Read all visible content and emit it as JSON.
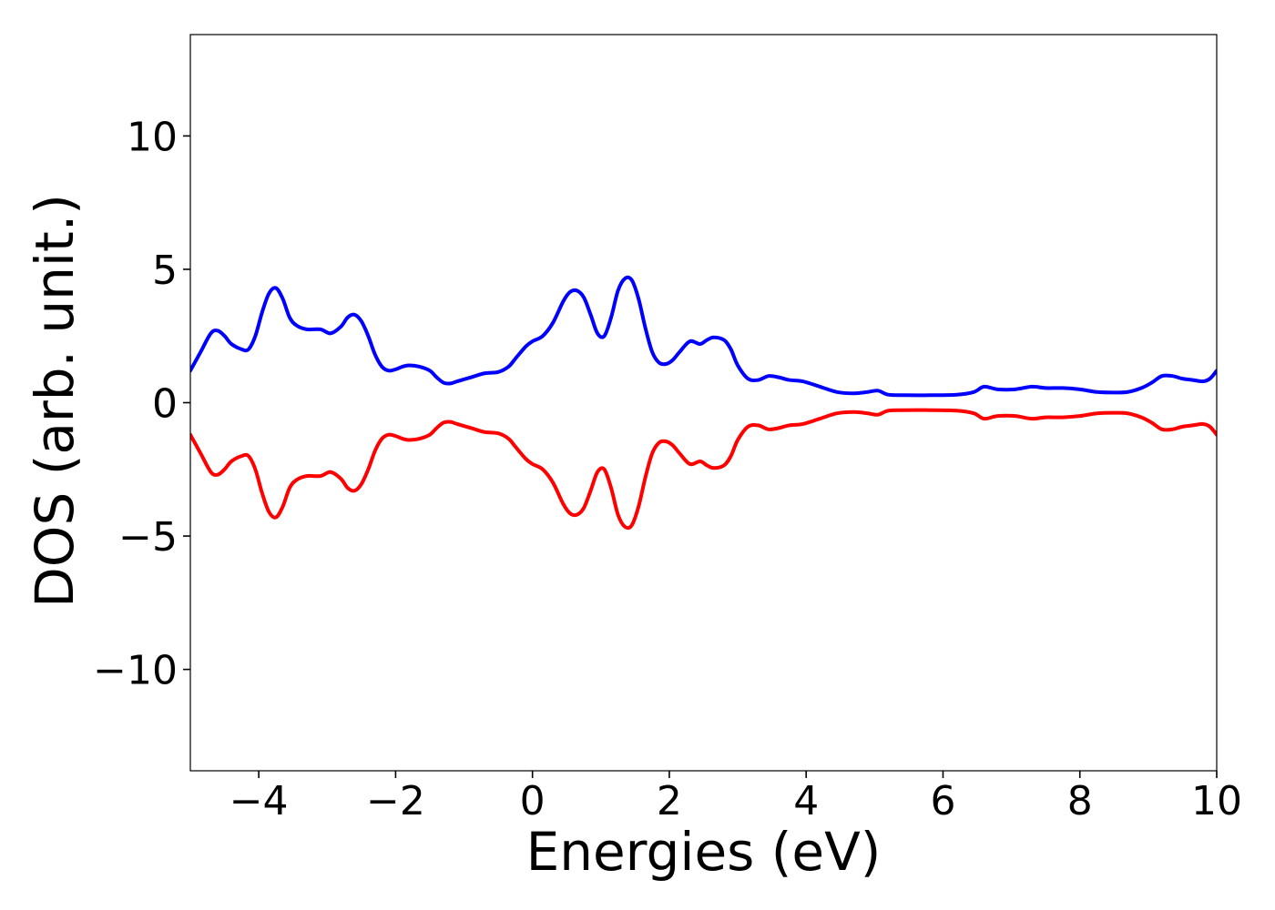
{
  "chart_data": {
    "type": "line",
    "title": "",
    "xlabel": "Energies (eV)",
    "ylabel": "DOS (arb. unit.)",
    "xlim": [
      -5,
      10
    ],
    "ylim": [
      -13.8,
      13.8
    ],
    "grid": false,
    "legend": "none",
    "xticks": [
      -4,
      -2,
      0,
      2,
      4,
      6,
      8,
      10
    ],
    "xtick_labels": [
      "−4",
      "−2",
      "0",
      "2",
      "4",
      "6",
      "8",
      "10"
    ],
    "yticks": [
      -10,
      -5,
      0,
      5,
      10
    ],
    "ytick_labels": [
      "−10",
      "−5",
      "0",
      "5",
      "10"
    ],
    "series": [
      {
        "color": "#0000ff",
        "x": [
          -5.0,
          -4.85,
          -4.7,
          -4.6,
          -4.5,
          -4.4,
          -4.25,
          -4.15,
          -4.05,
          -3.95,
          -3.85,
          -3.75,
          -3.65,
          -3.55,
          -3.45,
          -3.3,
          -3.1,
          -2.95,
          -2.8,
          -2.7,
          -2.6,
          -2.5,
          -2.4,
          -2.3,
          -2.2,
          -2.1,
          -2.0,
          -1.9,
          -1.8,
          -1.65,
          -1.5,
          -1.4,
          -1.3,
          -1.2,
          -1.1,
          -0.9,
          -0.7,
          -0.5,
          -0.35,
          -0.25,
          -0.1,
          0.0,
          0.15,
          0.3,
          0.45,
          0.55,
          0.65,
          0.75,
          0.85,
          0.95,
          1.05,
          1.15,
          1.25,
          1.35,
          1.45,
          1.55,
          1.65,
          1.75,
          1.85,
          1.95,
          2.05,
          2.15,
          2.3,
          2.45,
          2.55,
          2.65,
          2.8,
          2.9,
          3.0,
          3.15,
          3.3,
          3.45,
          3.6,
          3.75,
          3.95,
          4.2,
          4.45,
          4.7,
          4.9,
          5.05,
          5.2,
          5.45,
          5.8,
          6.2,
          6.45,
          6.6,
          6.8,
          7.05,
          7.3,
          7.5,
          7.75,
          8.0,
          8.25,
          8.5,
          8.7,
          8.9,
          9.05,
          9.2,
          9.35,
          9.5,
          9.65,
          9.8,
          9.9,
          10.0
        ],
        "y": [
          1.2,
          1.9,
          2.6,
          2.7,
          2.5,
          2.2,
          2.0,
          2.0,
          2.5,
          3.4,
          4.1,
          4.3,
          3.9,
          3.2,
          2.9,
          2.75,
          2.75,
          2.6,
          2.85,
          3.2,
          3.3,
          3.05,
          2.5,
          1.8,
          1.35,
          1.2,
          1.25,
          1.35,
          1.4,
          1.35,
          1.2,
          0.95,
          0.75,
          0.72,
          0.8,
          0.95,
          1.1,
          1.15,
          1.35,
          1.65,
          2.1,
          2.3,
          2.5,
          3.0,
          3.8,
          4.15,
          4.2,
          3.95,
          3.3,
          2.6,
          2.5,
          3.2,
          4.2,
          4.65,
          4.6,
          3.9,
          2.8,
          1.9,
          1.5,
          1.45,
          1.6,
          1.9,
          2.3,
          2.2,
          2.35,
          2.45,
          2.35,
          2.0,
          1.4,
          0.9,
          0.85,
          1.0,
          0.95,
          0.85,
          0.8,
          0.6,
          0.4,
          0.35,
          0.4,
          0.45,
          0.3,
          0.28,
          0.28,
          0.3,
          0.4,
          0.6,
          0.5,
          0.5,
          0.6,
          0.55,
          0.55,
          0.5,
          0.4,
          0.38,
          0.4,
          0.55,
          0.75,
          1.0,
          1.0,
          0.9,
          0.85,
          0.8,
          0.9,
          1.2
        ]
      },
      {
        "color": "#ff0000",
        "x": [
          -5.0,
          -4.85,
          -4.7,
          -4.6,
          -4.5,
          -4.4,
          -4.25,
          -4.15,
          -4.05,
          -3.95,
          -3.85,
          -3.75,
          -3.65,
          -3.55,
          -3.45,
          -3.3,
          -3.1,
          -2.95,
          -2.8,
          -2.7,
          -2.6,
          -2.5,
          -2.4,
          -2.3,
          -2.2,
          -2.1,
          -2.0,
          -1.9,
          -1.8,
          -1.65,
          -1.5,
          -1.4,
          -1.3,
          -1.2,
          -1.1,
          -0.9,
          -0.7,
          -0.5,
          -0.35,
          -0.25,
          -0.1,
          0.0,
          0.15,
          0.3,
          0.45,
          0.55,
          0.65,
          0.75,
          0.85,
          0.95,
          1.05,
          1.15,
          1.25,
          1.35,
          1.45,
          1.55,
          1.65,
          1.75,
          1.85,
          1.95,
          2.05,
          2.15,
          2.3,
          2.45,
          2.55,
          2.65,
          2.8,
          2.9,
          3.0,
          3.15,
          3.3,
          3.45,
          3.6,
          3.75,
          3.95,
          4.2,
          4.45,
          4.7,
          4.9,
          5.05,
          5.2,
          5.45,
          5.8,
          6.2,
          6.45,
          6.6,
          6.8,
          7.05,
          7.3,
          7.5,
          7.75,
          8.0,
          8.25,
          8.5,
          8.7,
          8.9,
          9.05,
          9.2,
          9.35,
          9.5,
          9.65,
          9.8,
          9.9,
          10.0
        ],
        "y": [
          -1.2,
          -1.9,
          -2.6,
          -2.7,
          -2.5,
          -2.2,
          -2.0,
          -2.0,
          -2.5,
          -3.4,
          -4.1,
          -4.3,
          -3.9,
          -3.2,
          -2.9,
          -2.75,
          -2.75,
          -2.6,
          -2.85,
          -3.2,
          -3.3,
          -3.05,
          -2.5,
          -1.8,
          -1.35,
          -1.2,
          -1.25,
          -1.35,
          -1.4,
          -1.35,
          -1.2,
          -0.95,
          -0.75,
          -0.72,
          -0.8,
          -0.95,
          -1.1,
          -1.15,
          -1.35,
          -1.65,
          -2.1,
          -2.3,
          -2.5,
          -3.0,
          -3.8,
          -4.15,
          -4.2,
          -3.95,
          -3.3,
          -2.6,
          -2.5,
          -3.2,
          -4.2,
          -4.65,
          -4.6,
          -3.9,
          -2.8,
          -1.9,
          -1.5,
          -1.45,
          -1.6,
          -1.9,
          -2.3,
          -2.2,
          -2.35,
          -2.45,
          -2.35,
          -2.0,
          -1.4,
          -0.9,
          -0.85,
          -1.0,
          -0.95,
          -0.85,
          -0.8,
          -0.6,
          -0.4,
          -0.35,
          -0.4,
          -0.45,
          -0.3,
          -0.28,
          -0.28,
          -0.3,
          -0.4,
          -0.6,
          -0.5,
          -0.5,
          -0.6,
          -0.55,
          -0.55,
          -0.5,
          -0.4,
          -0.38,
          -0.4,
          -0.55,
          -0.75,
          -1.0,
          -1.0,
          -0.9,
          -0.85,
          -0.8,
          -0.9,
          -1.2
        ]
      }
    ]
  }
}
